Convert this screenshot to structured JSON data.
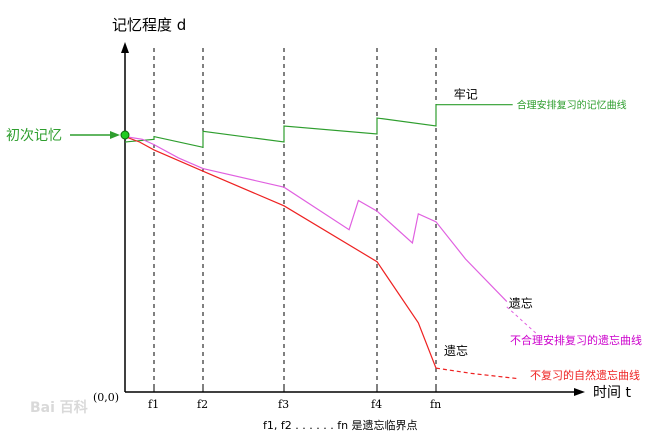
{
  "chart_data": {
    "type": "line",
    "ylabel": "记忆程度 d",
    "xlabel": "时间 t",
    "origin_label": "(0,0)",
    "start_label": "初次记忆",
    "x_ticks": [
      "f1",
      "f2",
      "f3",
      "f4",
      "fn"
    ],
    "x_tick_values": [
      1,
      2,
      3,
      4,
      5
    ],
    "footnote": "f1, f2 . . . . . . fn 是遗忘临界点",
    "grid": "dashed vertical lines at f1…fn",
    "series": [
      {
        "name": "合理安排复习的记忆曲线",
        "color": "#2e9e2e",
        "end_label": "牢记",
        "points": [
          [
            0,
            0.94
          ],
          [
            1,
            0.95
          ],
          [
            1,
            0.96
          ],
          [
            2,
            0.92
          ],
          [
            2,
            0.98
          ],
          [
            3,
            0.94
          ],
          [
            3,
            1.0
          ],
          [
            4,
            0.97
          ],
          [
            4,
            1.03
          ],
          [
            5,
            1.0
          ],
          [
            5,
            1.08
          ],
          [
            6.3,
            1.08
          ]
        ]
      },
      {
        "name": "不合理安排复习的遗忘曲线",
        "color": "#e060e0",
        "end_label": "遗忘",
        "points": [
          [
            0,
            0.96
          ],
          [
            0.6,
            0.95
          ],
          [
            1,
            0.93
          ],
          [
            1.5,
            0.88
          ],
          [
            2,
            0.84
          ],
          [
            3,
            0.77
          ],
          [
            3.7,
            0.61
          ],
          [
            3.8,
            0.72
          ],
          [
            4,
            0.68
          ],
          [
            4.6,
            0.56
          ],
          [
            4.7,
            0.67
          ],
          [
            5,
            0.64
          ],
          [
            5.5,
            0.5
          ],
          [
            6.2,
            0.34
          ]
        ]
      },
      {
        "name": "不复习的自然遗忘曲线",
        "color": "#ee2222",
        "end_label": "遗忘",
        "points": [
          [
            0,
            0.96
          ],
          [
            0.5,
            0.94
          ],
          [
            1,
            0.91
          ],
          [
            2,
            0.83
          ],
          [
            3,
            0.7
          ],
          [
            4,
            0.49
          ],
          [
            4.7,
            0.26
          ],
          [
            5,
            0.09
          ]
        ],
        "dashed_tail": [
          [
            5,
            0.09
          ],
          [
            5.6,
            0.07
          ],
          [
            6.4,
            0.05
          ]
        ]
      }
    ]
  },
  "watermark": "Bai 百科"
}
